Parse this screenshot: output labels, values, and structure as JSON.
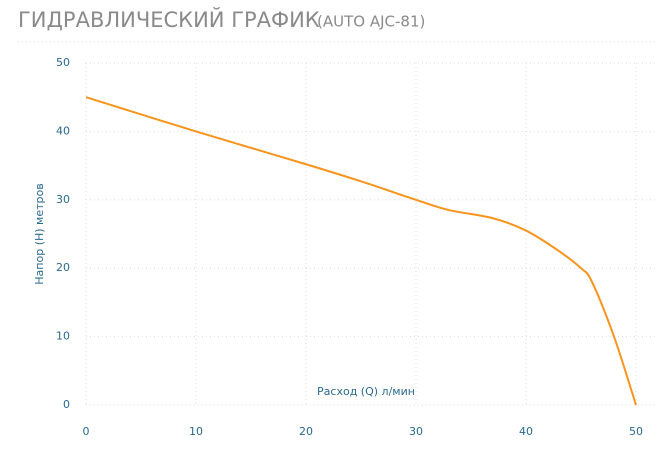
{
  "chart_data": {
    "type": "line",
    "title": "ГИДРАВЛИЧЕСКИЙ ГРАФИК",
    "subtitle": "(AUTO AJC-81)",
    "x_label": "Расход (Q) л/мин",
    "y_label": "Напор (H) метров",
    "x": [
      0,
      10,
      20,
      25,
      30,
      33,
      37,
      40,
      43,
      45,
      46,
      48,
      50
    ],
    "values": [
      45,
      40,
      35.2,
      32.7,
      30,
      28.5,
      27.3,
      25.5,
      22.5,
      20,
      18,
      10,
      0
    ],
    "color": "#f7941d",
    "xlim": [
      0,
      50
    ],
    "xticks": [
      0,
      10,
      20,
      30,
      40,
      50
    ],
    "ylim": [
      0,
      50
    ],
    "yticks": [
      0,
      10,
      20,
      30,
      40,
      50
    ],
    "grid": true
  }
}
